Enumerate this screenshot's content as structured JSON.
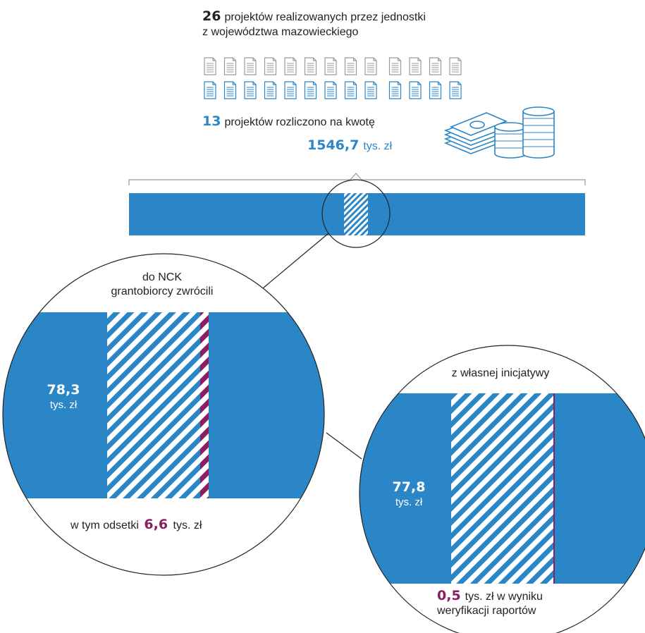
{
  "header": {
    "total_count": "26",
    "total_text_line1": "projektów realizowanych przez jednostki",
    "total_text_line2": "z województwa mazowieckiego"
  },
  "settled": {
    "count": "13",
    "text": "projektów rozliczono na kwotę",
    "amount": "1546,7",
    "unit": "tys. zł"
  },
  "icons": {
    "documents_total": 26,
    "documents_settled": 13,
    "document_icon": "document-icon",
    "money_icon": "money-and-coins-icon"
  },
  "left_zoom": {
    "title_line1": "do NCK",
    "title_line2": "grantobiorcy zwrócili",
    "value": "78,3",
    "unit": "tys. zł",
    "bottom_prefix": "w tym odsetki",
    "bottom_value": "6,6",
    "bottom_unit": "tys. zł"
  },
  "right_zoom": {
    "title": "z własnej inicjatywy",
    "value": "77,8",
    "unit": "tys. zł",
    "bottom_value": "0,5",
    "bottom_line1": "tys. zł w wyniku",
    "bottom_line2": "weryfikacji raportów"
  },
  "colors": {
    "blue": "#2b86c8",
    "purple": "#8b1e62",
    "grey_doc": "#9a9a9a",
    "text": "#222222"
  }
}
